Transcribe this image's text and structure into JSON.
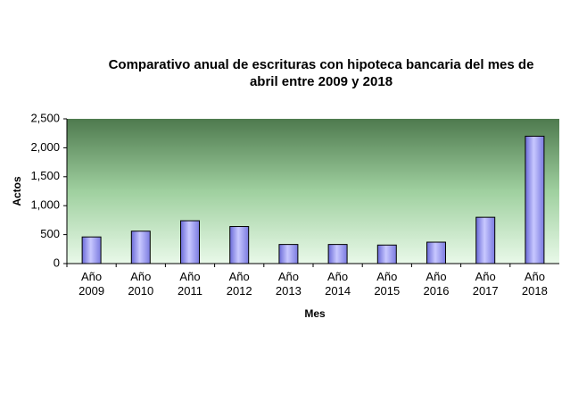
{
  "chart_data": {
    "type": "bar",
    "title": "Comparativo anual de escrituras con hipoteca bancaria del mes de abril entre 2009 y 2018",
    "x_label": "Mes",
    "y_label": "Actos",
    "categories": [
      "Año 2009",
      "Año 2010",
      "Año 2011",
      "Año 2012",
      "Año 2013",
      "Año 2014",
      "Año 2015",
      "Año 2016",
      "Año 2017",
      "Año 2018"
    ],
    "values": [
      460,
      560,
      740,
      640,
      330,
      330,
      320,
      370,
      800,
      2200
    ],
    "color": "#9999ff",
    "ylim": [
      0,
      2500
    ],
    "yticks": [
      0,
      500,
      {
        "value": 1000,
        "label": "1,000"
      },
      {
        "value": 1500,
        "label": "1,500"
      },
      {
        "value": 2000,
        "label": "2,000"
      },
      {
        "value": 2500,
        "label": "2,500"
      }
    ]
  }
}
